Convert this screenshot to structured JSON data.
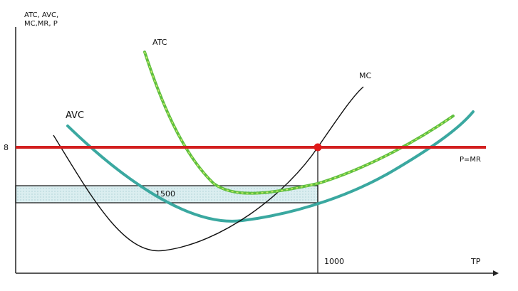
{
  "chart_data": {
    "type": "line",
    "title": "",
    "xlabel": "TP",
    "ylabel": "ATC, AVC, MC,MR, P",
    "y_tick_label": "8",
    "x_tick_label": "1000",
    "shaded_area_label": "1500",
    "grid": false,
    "legend": "none",
    "series": [
      {
        "name": "MC",
        "color": "#111111"
      },
      {
        "name": "ATC",
        "color": "#5fbf3f"
      },
      {
        "name": "AVC",
        "color": "#3aa8a0"
      },
      {
        "name": "P=MR",
        "color": "#d21f1f"
      }
    ],
    "equilibrium_point_color": "#e01a1a",
    "shaded_rect_color": "#dbeef0"
  }
}
